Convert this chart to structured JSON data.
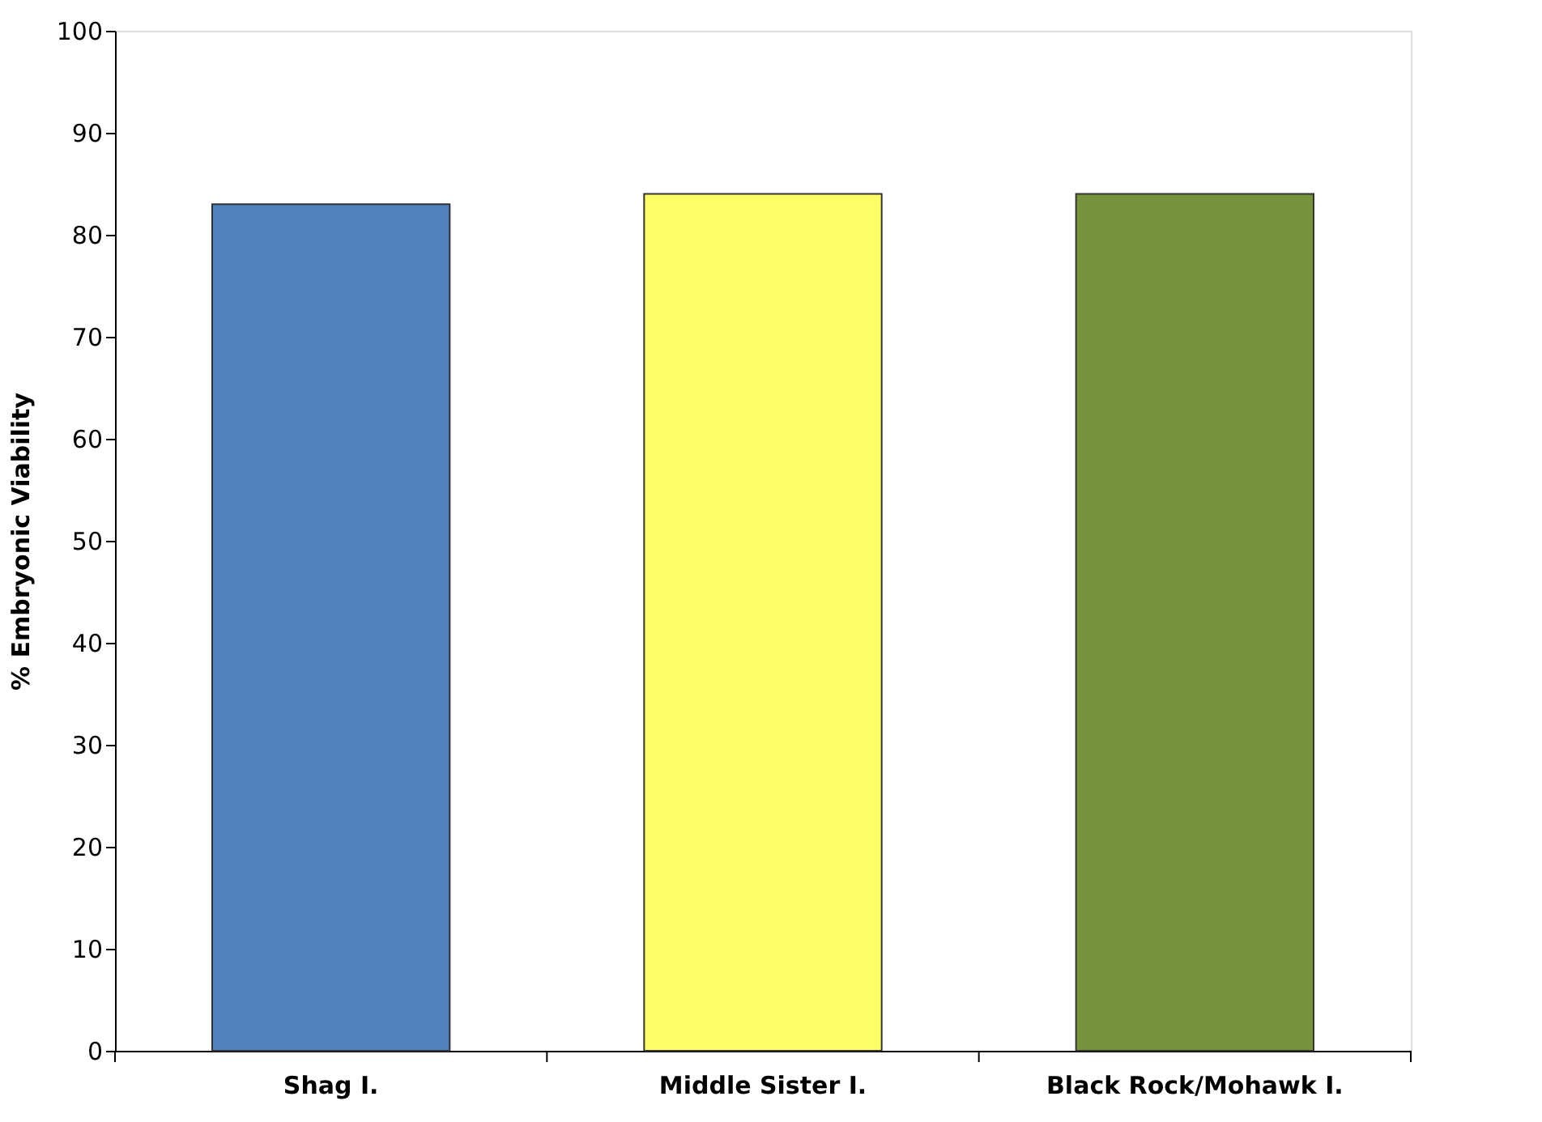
{
  "chart_data": {
    "type": "bar",
    "ylabel": "% Embryonic Viability",
    "categories": [
      "Shag I.",
      "Middle Sister I.",
      "Black Rock/Mohawk I."
    ],
    "values": [
      83,
      84,
      84
    ],
    "colors": [
      "#4f81bd",
      "#ffff66",
      "#77933c"
    ],
    "ylim": [
      0,
      100
    ],
    "yticks": [
      0,
      10,
      20,
      30,
      40,
      50,
      60,
      70,
      80,
      90,
      100
    ],
    "grid": false
  }
}
